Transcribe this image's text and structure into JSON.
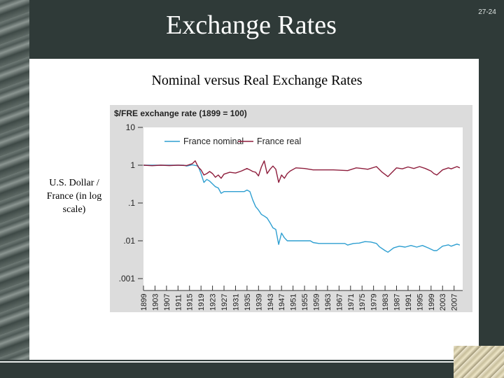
{
  "slide": {
    "title": "Exchange Rates",
    "page_number": "27-24",
    "subtitle": "Nominal versus Real Exchange Rates",
    "side_note": "U.S. Dollar / France (in log scale)"
  },
  "colors": {
    "nominal": "#2e9fd1",
    "real": "#8e1d3c",
    "chart_background": "#dcdcdc",
    "frame": "#2f3a38"
  },
  "chart_data": {
    "type": "line",
    "title": "$/FRE exchange rate (1899 = 100)",
    "xlabel": "",
    "ylabel": "",
    "y_scale": "log",
    "ylim": [
      0.001,
      10
    ],
    "xlim": [
      1899,
      2010
    ],
    "y_ticks": [
      10,
      1,
      0.1,
      0.01,
      0.001
    ],
    "y_tick_labels": [
      "10",
      "1",
      ".1",
      ".01",
      ".001"
    ],
    "x_tick_labels": [
      "1899",
      "1903",
      "1907",
      "1911",
      "1915",
      "1919",
      "1923",
      "1927",
      "1931",
      "1935",
      "1939",
      "1943",
      "1947",
      "1951",
      "1955",
      "1959",
      "1963",
      "1967",
      "1971",
      "1975",
      "1979",
      "1983",
      "1987",
      "1991",
      "1995",
      "1999",
      "2003",
      "2007"
    ],
    "legend": "top-left",
    "grid": false,
    "series": [
      {
        "name": "France nominal",
        "points": [
          [
            1899,
            1
          ],
          [
            1905,
            1
          ],
          [
            1910,
            1
          ],
          [
            1913,
            1
          ],
          [
            1914,
            0.95
          ],
          [
            1916,
            1.02
          ],
          [
            1918,
            0.95
          ],
          [
            1919,
            0.6
          ],
          [
            1920,
            0.35
          ],
          [
            1921,
            0.42
          ],
          [
            1922,
            0.38
          ],
          [
            1923,
            0.32
          ],
          [
            1924,
            0.27
          ],
          [
            1925,
            0.25
          ],
          [
            1926,
            0.18
          ],
          [
            1927,
            0.2
          ],
          [
            1928,
            0.2
          ],
          [
            1930,
            0.2
          ],
          [
            1932,
            0.2
          ],
          [
            1934,
            0.2
          ],
          [
            1935,
            0.22
          ],
          [
            1936,
            0.2
          ],
          [
            1937,
            0.12
          ],
          [
            1938,
            0.08
          ],
          [
            1939,
            0.065
          ],
          [
            1940,
            0.05
          ],
          [
            1941,
            0.045
          ],
          [
            1942,
            0.04
          ],
          [
            1943,
            0.03
          ],
          [
            1944,
            0.022
          ],
          [
            1945,
            0.02
          ],
          [
            1946,
            0.008
          ],
          [
            1947,
            0.016
          ],
          [
            1948,
            0.012
          ],
          [
            1949,
            0.01
          ],
          [
            1952,
            0.01
          ],
          [
            1955,
            0.01
          ],
          [
            1957,
            0.01
          ],
          [
            1958,
            0.009
          ],
          [
            1960,
            0.0085
          ],
          [
            1965,
            0.0085
          ],
          [
            1969,
            0.0085
          ],
          [
            1970,
            0.0077
          ],
          [
            1972,
            0.0085
          ],
          [
            1974,
            0.0087
          ],
          [
            1976,
            0.0095
          ],
          [
            1978,
            0.0093
          ],
          [
            1980,
            0.0085
          ],
          [
            1981,
            0.007
          ],
          [
            1983,
            0.0055
          ],
          [
            1984,
            0.005
          ],
          [
            1986,
            0.0065
          ],
          [
            1988,
            0.0072
          ],
          [
            1990,
            0.0068
          ],
          [
            1992,
            0.0075
          ],
          [
            1994,
            0.0068
          ],
          [
            1996,
            0.0075
          ],
          [
            1998,
            0.0065
          ],
          [
            2000,
            0.0055
          ],
          [
            2001,
            0.0055
          ],
          [
            2003,
            0.0072
          ],
          [
            2005,
            0.0078
          ],
          [
            2006,
            0.0072
          ],
          [
            2008,
            0.0082
          ],
          [
            2009,
            0.0077
          ]
        ]
      },
      {
        "name": "France real",
        "points": [
          [
            1899,
            1
          ],
          [
            1902,
            0.97
          ],
          [
            1905,
            1
          ],
          [
            1908,
            0.98
          ],
          [
            1911,
            1
          ],
          [
            1914,
            0.98
          ],
          [
            1916,
            1.1
          ],
          [
            1917,
            1.3
          ],
          [
            1918,
            0.9
          ],
          [
            1919,
            0.75
          ],
          [
            1920,
            0.55
          ],
          [
            1921,
            0.6
          ],
          [
            1922,
            0.68
          ],
          [
            1923,
            0.6
          ],
          [
            1924,
            0.48
          ],
          [
            1925,
            0.55
          ],
          [
            1926,
            0.45
          ],
          [
            1927,
            0.58
          ],
          [
            1929,
            0.65
          ],
          [
            1931,
            0.62
          ],
          [
            1933,
            0.7
          ],
          [
            1935,
            0.82
          ],
          [
            1936,
            0.75
          ],
          [
            1937,
            0.68
          ],
          [
            1938,
            0.65
          ],
          [
            1939,
            0.52
          ],
          [
            1940,
            0.9
          ],
          [
            1941,
            1.3
          ],
          [
            1942,
            0.6
          ],
          [
            1943,
            0.78
          ],
          [
            1944,
            0.95
          ],
          [
            1945,
            0.78
          ],
          [
            1946,
            0.35
          ],
          [
            1947,
            0.55
          ],
          [
            1948,
            0.45
          ],
          [
            1949,
            0.6
          ],
          [
            1950,
            0.7
          ],
          [
            1952,
            0.85
          ],
          [
            1955,
            0.82
          ],
          [
            1958,
            0.75
          ],
          [
            1960,
            0.75
          ],
          [
            1965,
            0.75
          ],
          [
            1970,
            0.72
          ],
          [
            1973,
            0.85
          ],
          [
            1975,
            0.82
          ],
          [
            1977,
            0.78
          ],
          [
            1980,
            0.92
          ],
          [
            1982,
            0.65
          ],
          [
            1984,
            0.5
          ],
          [
            1985,
            0.6
          ],
          [
            1987,
            0.85
          ],
          [
            1989,
            0.8
          ],
          [
            1991,
            0.9
          ],
          [
            1993,
            0.82
          ],
          [
            1995,
            0.92
          ],
          [
            1997,
            0.82
          ],
          [
            1999,
            0.7
          ],
          [
            2000,
            0.6
          ],
          [
            2001,
            0.55
          ],
          [
            2003,
            0.75
          ],
          [
            2005,
            0.85
          ],
          [
            2006,
            0.8
          ],
          [
            2008,
            0.92
          ],
          [
            2009,
            0.85
          ]
        ]
      }
    ]
  }
}
